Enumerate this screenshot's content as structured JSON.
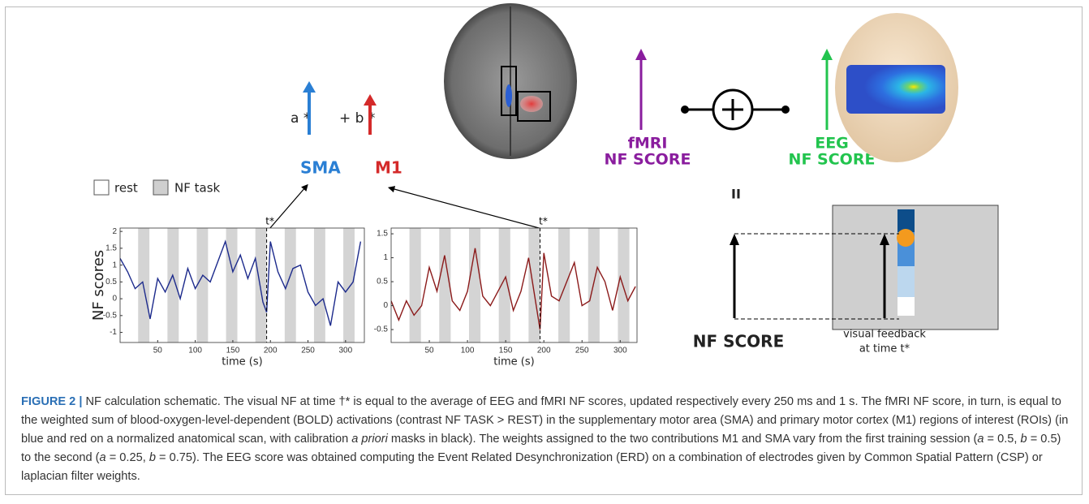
{
  "figure": {
    "formula": {
      "a": "a *",
      "b": "+ b *",
      "sma": "SMA",
      "m1": "M1"
    },
    "fmri_label": [
      "fMRI",
      "NF SCORE"
    ],
    "eeg_label": [
      "EEG",
      "NF SCORE"
    ],
    "equals": "II",
    "legend": {
      "rest": "rest",
      "task": "NF task"
    },
    "nf_score": "NF SCORE",
    "feedback": [
      "visual feedback",
      "at time t*"
    ],
    "plots": [
      {
        "ylabel": "NF scores",
        "xlabel": "time (s)",
        "marker": "t*",
        "tstar": 195,
        "color": "#1c2a8c",
        "xlim": [
          0,
          325
        ],
        "ylim": [
          -1.3,
          2.1
        ],
        "xticks": [
          50,
          100,
          150,
          200,
          250,
          300
        ],
        "yticks": [
          -1,
          -0.5,
          0,
          0.5,
          1,
          1.5,
          2
        ],
        "task_blocks": [
          [
            24,
            39
          ],
          [
            63,
            78
          ],
          [
            102,
            117
          ],
          [
            141,
            156
          ],
          [
            180,
            195
          ],
          [
            219,
            234
          ],
          [
            258,
            273
          ],
          [
            297,
            312
          ]
        ],
        "x": [
          0,
          10,
          20,
          30,
          40,
          50,
          60,
          70,
          80,
          90,
          100,
          110,
          120,
          130,
          140,
          150,
          160,
          170,
          180,
          190,
          195,
          200,
          210,
          220,
          230,
          240,
          250,
          260,
          270,
          280,
          290,
          300,
          310,
          320
        ],
        "values": [
          1.2,
          0.8,
          0.3,
          0.5,
          -0.6,
          0.6,
          0.2,
          0.7,
          0.0,
          0.9,
          0.3,
          0.7,
          0.5,
          1.1,
          1.7,
          0.8,
          1.3,
          0.6,
          1.2,
          -0.1,
          -0.4,
          1.7,
          0.8,
          0.3,
          0.9,
          1.0,
          0.2,
          -0.2,
          0.0,
          -0.8,
          0.5,
          0.2,
          0.5,
          1.7
        ]
      },
      {
        "xlabel": "time (s)",
        "marker": "t*",
        "tstar": 195,
        "color": "#8b1a1a",
        "xlim": [
          0,
          322
        ],
        "ylim": [
          -0.77,
          1.62
        ],
        "xticks": [
          50,
          100,
          150,
          200,
          250,
          300
        ],
        "yticks": [
          -0.5,
          0,
          0.5,
          1,
          1.5
        ],
        "task_blocks": [
          [
            24,
            39
          ],
          [
            63,
            78
          ],
          [
            102,
            117
          ],
          [
            141,
            156
          ],
          [
            180,
            195
          ],
          [
            219,
            234
          ],
          [
            258,
            273
          ],
          [
            297,
            312
          ]
        ],
        "x": [
          0,
          10,
          20,
          30,
          40,
          50,
          60,
          70,
          80,
          90,
          100,
          110,
          120,
          130,
          140,
          150,
          160,
          170,
          180,
          190,
          195,
          200,
          210,
          220,
          230,
          240,
          250,
          260,
          270,
          280,
          290,
          300,
          310,
          320
        ],
        "values": [
          0.1,
          -0.3,
          0.1,
          -0.2,
          0.0,
          0.8,
          0.3,
          1.05,
          0.1,
          -0.1,
          0.3,
          1.2,
          0.2,
          0.0,
          0.3,
          0.6,
          -0.1,
          0.3,
          1.0,
          0.0,
          -0.5,
          1.1,
          0.2,
          0.1,
          0.5,
          0.9,
          0.0,
          0.1,
          0.8,
          0.5,
          -0.1,
          0.6,
          0.1,
          0.4
        ]
      }
    ]
  },
  "caption": {
    "label": "FIGURE 2 |",
    "runs": [
      {
        "text": " NF calculation schematic. The visual NF at time †* is equal to the average of EEG and fMRI NF scores, updated respectively every 250 ms and 1 s. The fMRI NF score, in turn, is equal to the weighted sum of blood-oxygen-level-dependent (BOLD) activations (contrast NF TASK > REST) in the supplementary motor area (SMA) and primary motor cortex (M1) regions of interest (ROIs) (in blue and red on a normalized anatomical scan, with calibration ",
        "italic": false
      },
      {
        "text": "a priori",
        "italic": true
      },
      {
        "text": " masks in black). The weights assigned to the two contributions M1 and SMA vary from the first training session (",
        "italic": false
      },
      {
        "text": "a",
        "italic": true
      },
      {
        "text": " = 0.5, ",
        "italic": false
      },
      {
        "text": "b",
        "italic": true
      },
      {
        "text": " = 0.5) to the second (",
        "italic": false
      },
      {
        "text": "a",
        "italic": true
      },
      {
        "text": " = 0.25, ",
        "italic": false
      },
      {
        "text": "b",
        "italic": true
      },
      {
        "text": " = 0.75). The EEG score was obtained computing the Event Related Desynchronization (ERD) on a combination of electrodes given by Common Spatial Pattern (CSP) or laplacian filter weights.",
        "italic": false
      }
    ]
  }
}
